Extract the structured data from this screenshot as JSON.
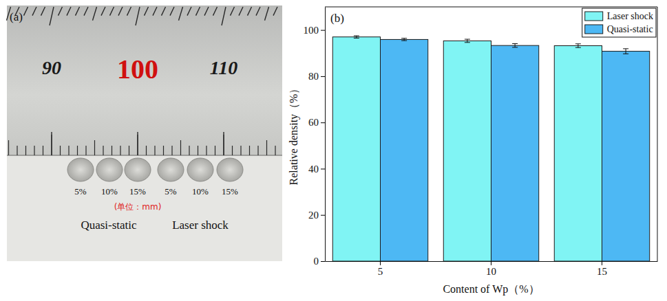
{
  "panel_a": {
    "label": "(a)",
    "ruler_labels": [
      90,
      100,
      110
    ],
    "ruler_label_colors": [
      "#1a1a1a",
      "#d01010",
      "#1a1a1a"
    ],
    "sample_labels": [
      "5%",
      "10%",
      "15%",
      "5%",
      "10%",
      "15%"
    ],
    "unit_note": "(单位：mm)",
    "group_labels": [
      "Quasi-static",
      "Laser shock"
    ]
  },
  "chart_data": {
    "type": "bar",
    "title": "(b)",
    "x_label": "Content of Wp（%）",
    "y_label": "Relative density（%）",
    "categories": [
      "5",
      "10",
      "15"
    ],
    "series": [
      {
        "name": "Laser shock",
        "color": "#80f4f4",
        "values": [
          97.0,
          95.3,
          93.2
        ],
        "error": [
          0.5,
          0.7,
          0.8
        ]
      },
      {
        "name": "Quasi-static",
        "color": "#4db8f4",
        "values": [
          95.9,
          93.3,
          90.8
        ],
        "error": [
          0.5,
          0.8,
          1.1
        ]
      }
    ],
    "ylim": [
      0,
      110
    ],
    "yticks": [
      0,
      20,
      40,
      60,
      80,
      100
    ],
    "legend": "top-right",
    "grid": false
  }
}
